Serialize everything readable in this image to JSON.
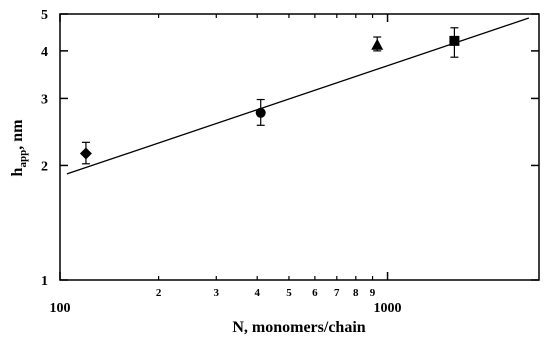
{
  "chart_data": {
    "type": "scatter",
    "xlabel": "N, monomers/chain",
    "ylabel_main": "h",
    "ylabel_sub": "app",
    "ylabel_suffix": ", nm",
    "x_scale": "log",
    "y_scale": "log",
    "xlim": [
      100,
      2900
    ],
    "ylim": [
      1,
      5
    ],
    "x_major_ticks": [
      {
        "value": 100,
        "label": "100"
      },
      {
        "value": 1000,
        "label": "1000"
      }
    ],
    "x_minor_ticks": [
      {
        "value": 200,
        "label": "2"
      },
      {
        "value": 300,
        "label": "3"
      },
      {
        "value": 400,
        "label": "4"
      },
      {
        "value": 500,
        "label": "5"
      },
      {
        "value": 600,
        "label": "6"
      },
      {
        "value": 700,
        "label": "7"
      },
      {
        "value": 800,
        "label": "8"
      },
      {
        "value": 900,
        "label": "9"
      }
    ],
    "y_ticks": [
      {
        "value": 1,
        "label": "1"
      },
      {
        "value": 2,
        "label": "2"
      },
      {
        "value": 3,
        "label": "3"
      },
      {
        "value": 4,
        "label": "4"
      },
      {
        "value": 5,
        "label": "5"
      }
    ],
    "points": [
      {
        "marker": "diamond",
        "x": 120,
        "y": 2.15,
        "err_low": 2.02,
        "err_high": 2.3
      },
      {
        "marker": "circle",
        "x": 410,
        "y": 2.75,
        "err_low": 2.55,
        "err_high": 2.98
      },
      {
        "marker": "triangle",
        "x": 930,
        "y": 4.15,
        "err_low": 4.0,
        "err_high": 4.35
      },
      {
        "marker": "square",
        "x": 1600,
        "y": 4.25,
        "err_low": 3.85,
        "err_high": 4.6
      }
    ],
    "fit_line": {
      "x": [
        105,
        2700
      ],
      "y": [
        1.9,
        4.88
      ]
    },
    "grid": false,
    "legend": "none"
  }
}
